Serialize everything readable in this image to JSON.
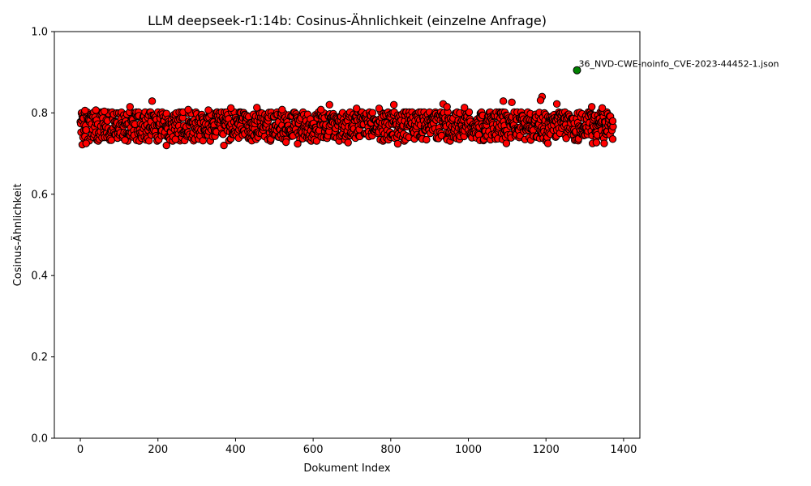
{
  "chart_data": {
    "type": "scatter",
    "title": "LLM deepseek-r1:14b: Cosinus-Ähnlichkeit (einzelne Anfrage)",
    "xlabel": "Dokument Index",
    "ylabel": "Cosinus-Ähnlichkeit",
    "xlim": [
      -67,
      1442
    ],
    "ylim": [
      0.0,
      1.0
    ],
    "xticks": [
      0,
      200,
      400,
      600,
      800,
      1000,
      1200,
      1400
    ],
    "xtick_labels": [
      "0",
      "200",
      "400",
      "600",
      "800",
      "1000",
      "1200",
      "1400"
    ],
    "yticks": [
      0.0,
      0.2,
      0.4,
      0.6,
      0.8,
      1.0
    ],
    "ytick_labels": [
      "0.0",
      "0.2",
      "0.4",
      "0.6",
      "0.8",
      "1.0"
    ],
    "grid": false,
    "point_count": 1374,
    "point_color": "#ff0000",
    "highlight_color": "#008000",
    "edge_color": "#000000",
    "highlight": {
      "x": 1280,
      "y": 0.905,
      "label": "36_NVD-CWE-noinfo_CVE-2023-44452-1.json"
    },
    "notable_points": [
      {
        "x": 5,
        "y": 0.722
      },
      {
        "x": 15,
        "y": 0.725
      },
      {
        "x": 12,
        "y": 0.806
      },
      {
        "x": 40,
        "y": 0.807
      },
      {
        "x": 62,
        "y": 0.804
      },
      {
        "x": 115,
        "y": 0.733
      },
      {
        "x": 128,
        "y": 0.815
      },
      {
        "x": 185,
        "y": 0.829
      },
      {
        "x": 222,
        "y": 0.72
      },
      {
        "x": 245,
        "y": 0.735
      },
      {
        "x": 278,
        "y": 0.808
      },
      {
        "x": 330,
        "y": 0.807
      },
      {
        "x": 370,
        "y": 0.72
      },
      {
        "x": 388,
        "y": 0.812
      },
      {
        "x": 455,
        "y": 0.813
      },
      {
        "x": 520,
        "y": 0.808
      },
      {
        "x": 530,
        "y": 0.728
      },
      {
        "x": 560,
        "y": 0.724
      },
      {
        "x": 620,
        "y": 0.808
      },
      {
        "x": 642,
        "y": 0.82
      },
      {
        "x": 690,
        "y": 0.727
      },
      {
        "x": 712,
        "y": 0.811
      },
      {
        "x": 770,
        "y": 0.811
      },
      {
        "x": 808,
        "y": 0.82
      },
      {
        "x": 818,
        "y": 0.724
      },
      {
        "x": 935,
        "y": 0.822
      },
      {
        "x": 945,
        "y": 0.815
      },
      {
        "x": 990,
        "y": 0.813
      },
      {
        "x": 1090,
        "y": 0.829
      },
      {
        "x": 1112,
        "y": 0.826
      },
      {
        "x": 1098,
        "y": 0.725
      },
      {
        "x": 1190,
        "y": 0.84
      },
      {
        "x": 1186,
        "y": 0.831
      },
      {
        "x": 1205,
        "y": 0.725
      },
      {
        "x": 1228,
        "y": 0.822
      },
      {
        "x": 1318,
        "y": 0.815
      },
      {
        "x": 1320,
        "y": 0.725
      },
      {
        "x": 1330,
        "y": 0.727
      },
      {
        "x": 1345,
        "y": 0.812
      },
      {
        "x": 1350,
        "y": 0.725
      },
      {
        "x": 1372,
        "y": 0.78
      }
    ]
  }
}
